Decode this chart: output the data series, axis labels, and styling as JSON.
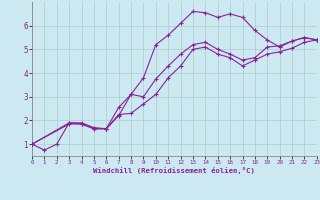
{
  "xlabel": "Windchill (Refroidissement éolien,°C)",
  "bg_color": "#cce8f0",
  "grid_color": "#aacccc",
  "line_color": "#882299",
  "xlim": [
    0,
    23
  ],
  "ylim": [
    0.5,
    7.0
  ],
  "yticks": [
    1,
    2,
    3,
    4,
    5,
    6
  ],
  "xticks": [
    0,
    1,
    2,
    3,
    4,
    5,
    6,
    7,
    8,
    9,
    10,
    11,
    12,
    13,
    14,
    15,
    16,
    17,
    18,
    19,
    20,
    21,
    22,
    23
  ],
  "line1_x": [
    0,
    1,
    2,
    3,
    4,
    5,
    6,
    7,
    8,
    9,
    10,
    11,
    12,
    13,
    14,
    15,
    16,
    17,
    18,
    19,
    20,
    21,
    22,
    23
  ],
  "line1_y": [
    1.0,
    0.75,
    1.0,
    1.9,
    1.85,
    1.65,
    1.65,
    2.2,
    3.1,
    3.8,
    5.2,
    5.6,
    6.1,
    6.6,
    6.55,
    6.35,
    6.5,
    6.35,
    5.8,
    5.4,
    5.1,
    5.35,
    5.5,
    5.4
  ],
  "line2_x": [
    0,
    3,
    4,
    5,
    6,
    7,
    8,
    9,
    10,
    11,
    12,
    13,
    14,
    15,
    16,
    17,
    18,
    19,
    20,
    21,
    22,
    23
  ],
  "line2_y": [
    1.0,
    1.9,
    1.9,
    1.7,
    1.65,
    2.55,
    3.1,
    3.0,
    3.75,
    4.3,
    4.8,
    5.2,
    5.3,
    5.0,
    4.8,
    4.55,
    4.65,
    5.1,
    5.15,
    5.35,
    5.5,
    5.4
  ],
  "line3_x": [
    0,
    3,
    4,
    5,
    6,
    7,
    8,
    9,
    10,
    11,
    12,
    13,
    14,
    15,
    16,
    17,
    18,
    19,
    20,
    21,
    22,
    23
  ],
  "line3_y": [
    1.0,
    1.85,
    1.85,
    1.65,
    1.65,
    2.25,
    2.3,
    2.7,
    3.1,
    3.8,
    4.3,
    5.0,
    5.1,
    4.8,
    4.65,
    4.3,
    4.55,
    4.8,
    4.9,
    5.05,
    5.3,
    5.4
  ]
}
